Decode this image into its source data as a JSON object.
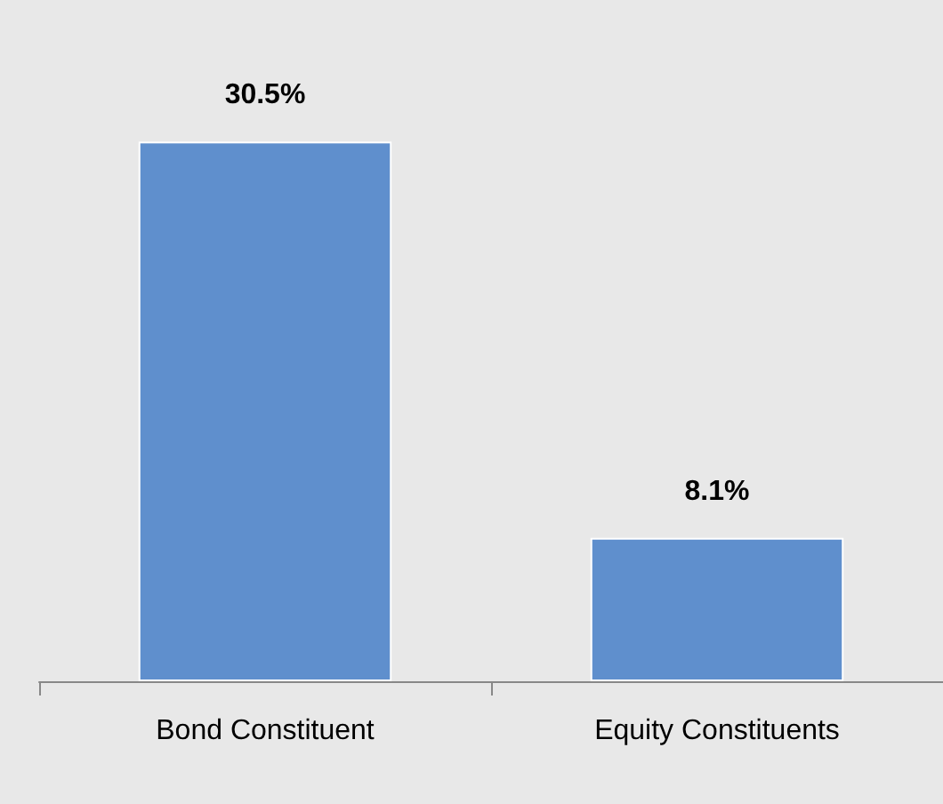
{
  "chart_data": {
    "type": "bar",
    "categories": [
      "Bond Constituent",
      "Equity Constituents"
    ],
    "values": [
      30.5,
      8.1
    ],
    "color": "#5f8fcd",
    "value_labels": [
      "30.5%",
      "8.1%"
    ]
  }
}
